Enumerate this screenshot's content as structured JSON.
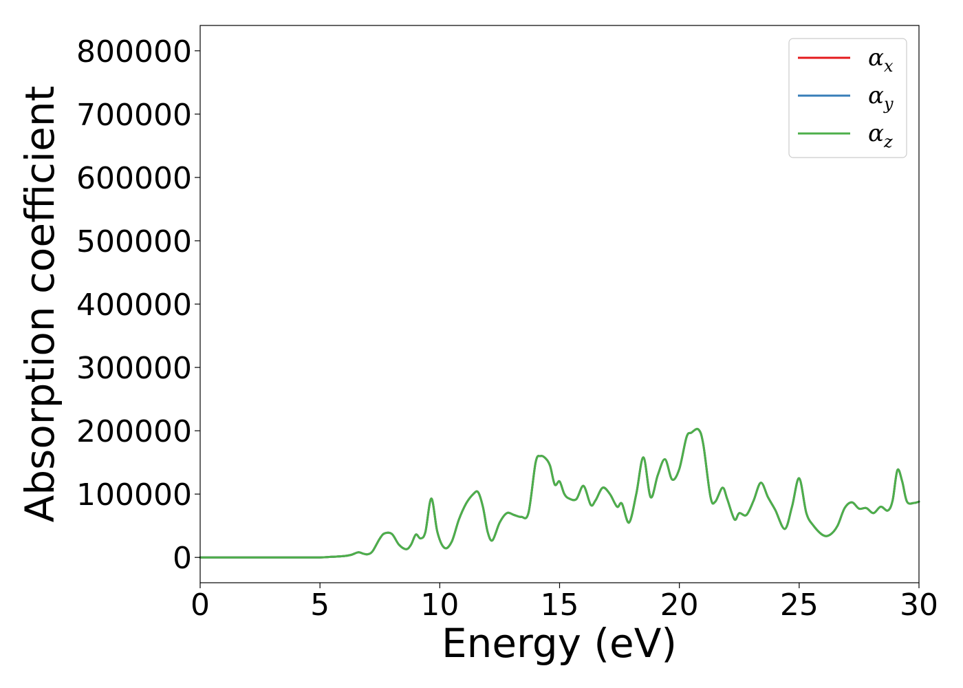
{
  "chart_data": {
    "type": "line",
    "title": "",
    "xlabel": "Energy (eV)",
    "ylabel": "Absorption coefficient",
    "xlim": [
      0,
      30
    ],
    "ylim": [
      -40000,
      840000
    ],
    "xticks": [
      0,
      5,
      10,
      15,
      20,
      25,
      30
    ],
    "yticks": [
      0,
      100000,
      200000,
      300000,
      400000,
      500000,
      600000,
      700000,
      800000
    ],
    "grid": false,
    "legend_position": "top-right",
    "legend": [
      {
        "base": "α",
        "sub": "x",
        "color": "#e41a1c"
      },
      {
        "base": "α",
        "sub": "y",
        "color": "#377eb8"
      },
      {
        "base": "α",
        "sub": "z",
        "color": "#4daf4a"
      }
    ],
    "x": [
      0,
      1,
      2,
      3,
      4,
      5,
      5.5,
      6,
      6.3,
      6.6,
      6.8,
      7.0,
      7.2,
      7.5,
      7.7,
      8.0,
      8.3,
      8.6,
      8.8,
      9.0,
      9.2,
      9.4,
      9.65,
      9.9,
      10.2,
      10.5,
      10.8,
      11.1,
      11.4,
      11.6,
      11.8,
      12.0,
      12.2,
      12.5,
      12.8,
      13.1,
      13.4,
      13.7,
      14.0,
      14.2,
      14.4,
      14.6,
      14.8,
      15.0,
      15.2,
      15.4,
      15.7,
      16.0,
      16.3,
      16.5,
      16.8,
      17.1,
      17.4,
      17.6,
      17.9,
      18.2,
      18.5,
      18.8,
      19.1,
      19.4,
      19.7,
      20.0,
      20.3,
      20.5,
      20.8,
      21.0,
      21.3,
      21.5,
      21.8,
      22.0,
      22.3,
      22.5,
      22.8,
      23.1,
      23.4,
      23.7,
      24.0,
      24.4,
      24.7,
      25.0,
      25.3,
      25.6,
      26.0,
      26.3,
      26.6,
      26.9,
      27.2,
      27.5,
      27.8,
      28.1,
      28.4,
      28.7,
      28.9,
      29.1,
      29.3,
      29.5,
      29.8,
      30.0
    ],
    "series": [
      {
        "name": "α_x",
        "color": "#e41a1c",
        "values": [
          0,
          0,
          0,
          0,
          0,
          0,
          1000,
          2000,
          4000,
          8000,
          6000,
          5000,
          10000,
          30000,
          38000,
          37000,
          20000,
          13000,
          20000,
          36000,
          30000,
          40000,
          93000,
          40000,
          15000,
          25000,
          60000,
          85000,
          100000,
          103000,
          80000,
          40000,
          27000,
          55000,
          70000,
          67000,
          64000,
          70000,
          150000,
          160000,
          157000,
          145000,
          115000,
          120000,
          100000,
          93000,
          92000,
          113000,
          83000,
          90000,
          110000,
          100000,
          80000,
          85000,
          55000,
          100000,
          158000,
          95000,
          130000,
          155000,
          123000,
          140000,
          190000,
          197000,
          202000,
          178000,
          95000,
          88000,
          110000,
          92000,
          60000,
          70000,
          67000,
          90000,
          118000,
          95000,
          75000,
          45000,
          80000,
          125000,
          70000,
          50000,
          35000,
          36000,
          50000,
          78000,
          87000,
          77000,
          78000,
          70000,
          80000,
          74000,
          90000,
          138000,
          120000,
          88000,
          86000,
          88000
        ]
      },
      {
        "name": "α_y",
        "color": "#377eb8",
        "values": [
          0,
          0,
          0,
          0,
          0,
          0,
          1000,
          2000,
          4000,
          8000,
          6000,
          5000,
          10000,
          30000,
          38000,
          37000,
          20000,
          13000,
          20000,
          36000,
          30000,
          40000,
          93000,
          40000,
          15000,
          25000,
          60000,
          85000,
          100000,
          103000,
          80000,
          40000,
          27000,
          55000,
          70000,
          67000,
          64000,
          70000,
          150000,
          160000,
          157000,
          145000,
          115000,
          120000,
          100000,
          93000,
          92000,
          113000,
          83000,
          90000,
          110000,
          100000,
          80000,
          85000,
          55000,
          100000,
          158000,
          95000,
          130000,
          155000,
          123000,
          140000,
          190000,
          197000,
          202000,
          178000,
          95000,
          88000,
          110000,
          92000,
          60000,
          70000,
          67000,
          90000,
          118000,
          95000,
          75000,
          45000,
          80000,
          125000,
          70000,
          50000,
          35000,
          36000,
          50000,
          78000,
          87000,
          77000,
          78000,
          70000,
          80000,
          74000,
          90000,
          138000,
          120000,
          88000,
          86000,
          88000
        ]
      },
      {
        "name": "α_z",
        "color": "#4daf4a",
        "values": [
          0,
          0,
          0,
          0,
          0,
          0,
          1000,
          2000,
          4000,
          8000,
          6000,
          5000,
          10000,
          30000,
          38000,
          37000,
          20000,
          13000,
          20000,
          36000,
          30000,
          40000,
          93000,
          40000,
          15000,
          25000,
          60000,
          85000,
          100000,
          103000,
          80000,
          40000,
          27000,
          55000,
          70000,
          67000,
          64000,
          70000,
          150000,
          160000,
          157000,
          145000,
          115000,
          120000,
          100000,
          93000,
          92000,
          113000,
          83000,
          90000,
          110000,
          100000,
          80000,
          85000,
          55000,
          100000,
          158000,
          95000,
          130000,
          155000,
          123000,
          140000,
          190000,
          197000,
          202000,
          178000,
          95000,
          88000,
          110000,
          92000,
          60000,
          70000,
          67000,
          90000,
          118000,
          95000,
          75000,
          45000,
          80000,
          125000,
          70000,
          50000,
          35000,
          36000,
          50000,
          78000,
          87000,
          77000,
          78000,
          70000,
          80000,
          74000,
          90000,
          138000,
          120000,
          88000,
          86000,
          88000
        ]
      }
    ]
  }
}
